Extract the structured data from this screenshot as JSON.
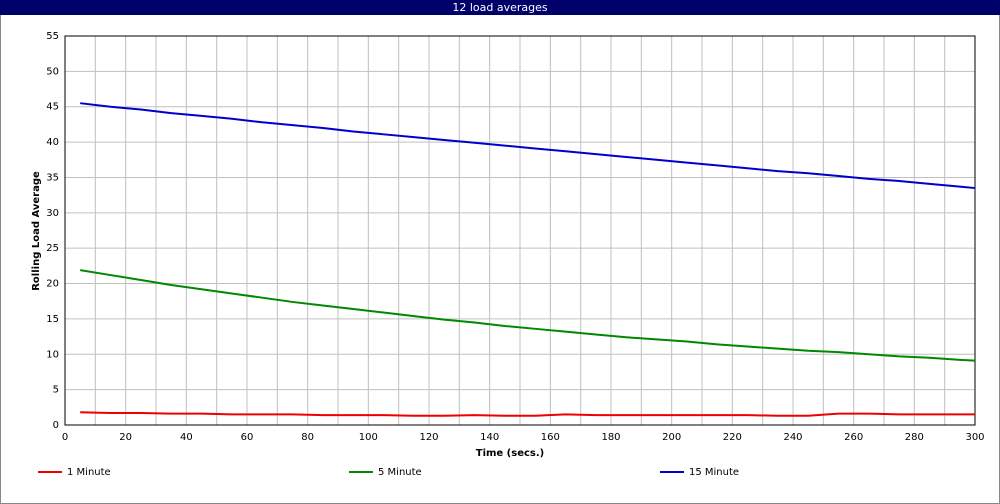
{
  "chart_data": {
    "type": "line",
    "title": "12 load averages",
    "x_label": "Time (secs.)",
    "y_label": "Rolling Load Average",
    "x": [
      5,
      15,
      25,
      35,
      45,
      55,
      65,
      75,
      85,
      95,
      105,
      115,
      125,
      135,
      145,
      155,
      165,
      175,
      185,
      195,
      205,
      215,
      225,
      235,
      245,
      255,
      265,
      275,
      285,
      295,
      300
    ],
    "series": [
      {
        "name": "1 Minute",
        "color": "#ee0000",
        "values": [
          1.8,
          1.7,
          1.7,
          1.6,
          1.6,
          1.5,
          1.5,
          1.5,
          1.4,
          1.4,
          1.4,
          1.3,
          1.3,
          1.4,
          1.3,
          1.3,
          1.5,
          1.4,
          1.4,
          1.4,
          1.4,
          1.4,
          1.4,
          1.3,
          1.3,
          1.6,
          1.6,
          1.5,
          1.5,
          1.5,
          1.5
        ]
      },
      {
        "name": "5 Minute",
        "color": "#008800",
        "values": [
          21.9,
          21.2,
          20.5,
          19.8,
          19.2,
          18.6,
          18.0,
          17.4,
          16.9,
          16.4,
          15.9,
          15.4,
          14.9,
          14.5,
          14.0,
          13.6,
          13.2,
          12.8,
          12.4,
          12.1,
          11.8,
          11.4,
          11.1,
          10.8,
          10.5,
          10.3,
          10.0,
          9.7,
          9.5,
          9.2,
          9.1
        ]
      },
      {
        "name": "15 Minute",
        "color": "#0000cc",
        "values": [
          45.5,
          45.0,
          44.6,
          44.1,
          43.7,
          43.3,
          42.8,
          42.4,
          42.0,
          41.5,
          41.1,
          40.7,
          40.3,
          39.9,
          39.5,
          39.1,
          38.7,
          38.3,
          37.9,
          37.5,
          37.1,
          36.7,
          36.3,
          35.9,
          35.6,
          35.2,
          34.8,
          34.5,
          34.1,
          33.7,
          33.5
        ]
      }
    ],
    "xlim": [
      0,
      300
    ],
    "xticks": [
      0,
      20,
      40,
      60,
      80,
      100,
      120,
      140,
      160,
      180,
      200,
      220,
      240,
      260,
      280,
      300
    ],
    "x_minor_ticks": [
      10,
      30,
      50,
      70,
      90,
      110,
      130,
      150,
      170,
      190,
      210,
      230,
      250,
      270,
      290
    ],
    "ylim": [
      0,
      55
    ],
    "yticks": [
      0,
      5,
      10,
      15,
      20,
      25,
      30,
      35,
      40,
      45,
      50,
      55
    ],
    "grid": true,
    "legend": "bottom"
  }
}
